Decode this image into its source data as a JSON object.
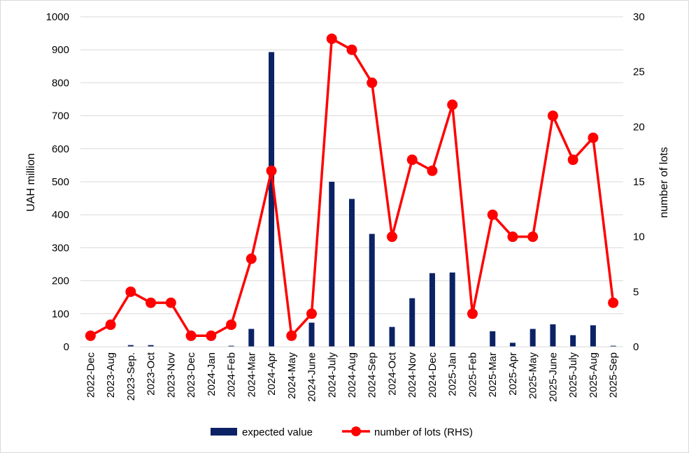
{
  "chart_data": {
    "type": "bar",
    "categories": [
      "2022-Dec",
      "2023-Aug",
      "2023-Sep.",
      "2023-Oct",
      "2023-Nov",
      "2023-Dec",
      "2024-Jan",
      "2024-Feb",
      "2024-Mar",
      "2024-Apr",
      "2024-May",
      "2024-June",
      "2024-July",
      "2024-Aug",
      "2024-Sep",
      "2024-Oct",
      "2024-Nov",
      "2024-Dec",
      "2025-Jan",
      "2025-Feb",
      "2025-Mar",
      "2025-Apr",
      "2025-May",
      "2025-June",
      "2025-July",
      "2025-Aug",
      "2025-Sep"
    ],
    "series": [
      {
        "name": "expected value",
        "type": "bar",
        "axis": "left",
        "color": "#0b2265",
        "values": [
          0,
          0,
          5,
          5,
          0,
          0,
          0,
          3,
          54,
          893,
          0,
          73,
          500,
          448,
          342,
          60,
          147,
          223,
          225,
          0,
          47,
          12,
          54,
          68,
          35,
          65,
          3
        ]
      },
      {
        "name": "number of lots (RHS)",
        "type": "line",
        "axis": "right",
        "color": "#ff0000",
        "values": [
          1,
          2,
          5,
          4,
          4,
          1,
          1,
          2,
          8,
          16,
          1,
          3,
          28,
          27,
          24,
          10,
          17,
          16,
          22,
          3,
          12,
          10,
          10,
          21,
          17,
          19,
          4
        ]
      }
    ],
    "ylabel": "UAH million",
    "y2label": "number of lots",
    "ylim": [
      0,
      1000
    ],
    "y2lim": [
      0,
      30
    ],
    "yticks": [
      "0",
      "100",
      "200",
      "300",
      "400",
      "500",
      "600",
      "700",
      "800",
      "900",
      "1000"
    ],
    "y2ticks": [
      "0",
      "5",
      "10",
      "15",
      "20",
      "25",
      "30"
    ],
    "grid": true,
    "legend_position": "bottom"
  }
}
